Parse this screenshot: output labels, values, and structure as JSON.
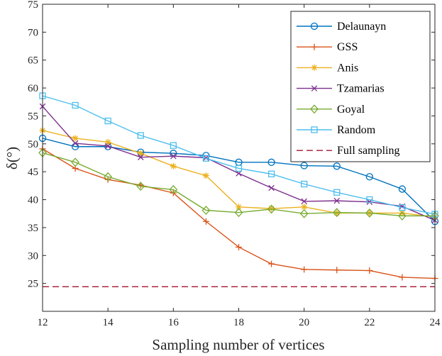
{
  "chart_data": {
    "type": "line",
    "title": "",
    "xlabel": "Sampling number of vertices",
    "ylabel": "δ(°)",
    "xlim": [
      12,
      24
    ],
    "ylim": [
      20,
      75
    ],
    "xticks": [
      12,
      14,
      16,
      18,
      20,
      22,
      24
    ],
    "yticks": [
      25,
      30,
      35,
      40,
      45,
      50,
      55,
      60,
      65,
      70,
      75
    ],
    "x": [
      12,
      13,
      14,
      15,
      16,
      17,
      18,
      19,
      20,
      21,
      22,
      23,
      24
    ],
    "legend_position": "top-right",
    "series": [
      {
        "name": "Delaunayn",
        "color": "#0072bd",
        "marker": "circle",
        "dash": "solid",
        "values": [
          51.0,
          49.5,
          49.5,
          48.5,
          48.3,
          47.9,
          46.7,
          46.7,
          46.1,
          46.0,
          44.1,
          41.9,
          36.1
        ]
      },
      {
        "name": "GSS",
        "color": "#d95319",
        "marker": "plus",
        "dash": "solid",
        "values": [
          49.1,
          45.6,
          43.6,
          42.6,
          41.2,
          36.1,
          31.5,
          28.5,
          27.5,
          27.4,
          27.3,
          26.1,
          25.9
        ]
      },
      {
        "name": "Anis",
        "color": "#edb120",
        "marker": "star",
        "dash": "solid",
        "values": [
          52.4,
          51.0,
          50.3,
          48.3,
          46.0,
          44.3,
          38.7,
          38.4,
          38.7,
          37.6,
          37.6,
          37.6,
          36.9
        ]
      },
      {
        "name": "Tzamarias",
        "color": "#7e2f8e",
        "marker": "x",
        "dash": "solid",
        "values": [
          56.7,
          50.1,
          49.6,
          47.6,
          47.8,
          47.5,
          44.7,
          42.1,
          39.7,
          39.8,
          39.6,
          38.8,
          36.3
        ]
      },
      {
        "name": "Goyal",
        "color": "#77ac30",
        "marker": "diamond",
        "dash": "solid",
        "values": [
          48.4,
          46.7,
          44.1,
          42.4,
          41.8,
          38.1,
          37.7,
          38.3,
          37.5,
          37.7,
          37.6,
          37.1,
          37.1
        ]
      },
      {
        "name": "Random",
        "color": "#4dbeee",
        "marker": "square",
        "dash": "solid",
        "values": [
          58.6,
          56.9,
          54.1,
          51.5,
          49.7,
          47.4,
          45.6,
          44.6,
          42.8,
          41.3,
          40.0,
          38.6,
          37.4
        ]
      },
      {
        "name": "Full sampling",
        "color": "#a2142f",
        "marker": "none",
        "dash": "dashed",
        "values": [
          24.4,
          24.4,
          24.4,
          24.4,
          24.4,
          24.4,
          24.4,
          24.4,
          24.4,
          24.4,
          24.4,
          24.4,
          24.4
        ]
      }
    ]
  }
}
